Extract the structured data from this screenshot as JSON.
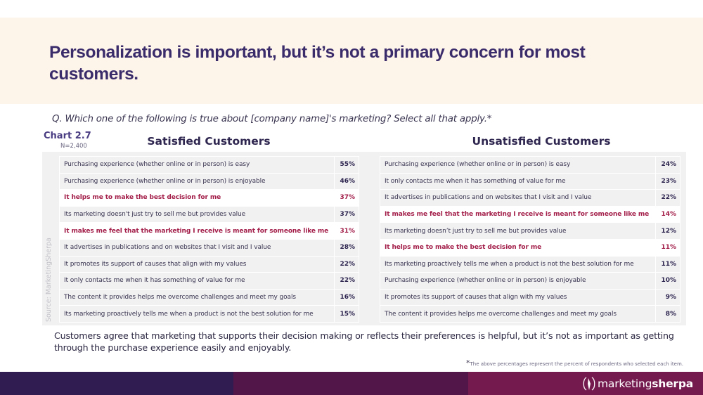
{
  "header": {
    "title": "Personalization is important, but it’s not a primary concern for most customers."
  },
  "question": "Q. Which one of the following is true about [company name]'s marketing? Select all that apply.*",
  "chart": {
    "id": "Chart 2.7",
    "sample": "N=2,400",
    "source": "Source: MarketingSherpa"
  },
  "satisfied": {
    "heading": "Satisfied Customers",
    "rows": [
      {
        "label": "Purchasing experience (whether online or in person) is easy",
        "value": "55%",
        "highlight": false
      },
      {
        "label": "Purchasing experience (whether online or in person) is enjoyable",
        "value": "46%",
        "highlight": false
      },
      {
        "label": "It helps me to make the best decision for me",
        "value": "37%",
        "highlight": true
      },
      {
        "label": "Its marketing doesn't just try to sell me but provides value",
        "value": "37%",
        "highlight": false
      },
      {
        "label": "It makes me feel that the marketing I receive is meant for someone like me",
        "value": "31%",
        "highlight": true
      },
      {
        "label": "It advertises in publications and on websites that I visit and I value",
        "value": "28%",
        "highlight": false
      },
      {
        "label": "It promotes its support of causes that align with my values",
        "value": "22%",
        "highlight": false
      },
      {
        "label": "It only contacts me when it has something of value for me",
        "value": "22%",
        "highlight": false
      },
      {
        "label": "The content it provides helps me overcome challenges and meet my goals",
        "value": "16%",
        "highlight": false
      },
      {
        "label": "Its marketing proactively tells me when a product is not the best solution for me",
        "value": "15%",
        "highlight": false
      }
    ]
  },
  "unsatisfied": {
    "heading": "Unsatisfied Customers",
    "rows": [
      {
        "label": "Purchasing experience (whether online or in person) is easy",
        "value": "24%",
        "highlight": false
      },
      {
        "label": "It only contacts me when it has something of value for me",
        "value": "23%",
        "highlight": false
      },
      {
        "label": "It advertises in publications and on websites that I visit and I value",
        "value": "22%",
        "highlight": false
      },
      {
        "label": "It makes me feel that the marketing I receive is meant for someone like me",
        "value": "14%",
        "highlight": true
      },
      {
        "label": "Its marketing doesn’t just try to sell me but provides value",
        "value": "12%",
        "highlight": false
      },
      {
        "label": "It helps me to make the best decision for me",
        "value": "11%",
        "highlight": true
      },
      {
        "label": "Its marketing proactively tells me when a product is not the best solution for me",
        "value": "11%",
        "highlight": false
      },
      {
        "label": "Purchasing experience (whether online or in person) is enjoyable",
        "value": "10%",
        "highlight": false
      },
      {
        "label": "It promotes its support of causes that align with my values",
        "value": "9%",
        "highlight": false
      },
      {
        "label": "The content it provides helps me overcome challenges and meet my goals",
        "value": "8%",
        "highlight": false
      }
    ]
  },
  "summary": "Customers agree that marketing that supports their decision making or reflects their preferences is helpful, but it’s not as important as getting through the purchase experience easily and enjoyably.",
  "footnote": {
    "star": "*",
    "text": "The above percentages represent the percent of respondents who selected each item."
  },
  "footer": {
    "colors": [
      "#311c52",
      "#521748",
      "#751a4f"
    ],
    "brand_light": "marketing",
    "brand_bold": "sherpa",
    "logo_icon": "sherpa-compass-icon"
  },
  "colors": {
    "title": "#3a2b6b",
    "highlight": "#a31f4a",
    "title_band": "#fdf4ea",
    "panel": "#f1f1f2"
  }
}
